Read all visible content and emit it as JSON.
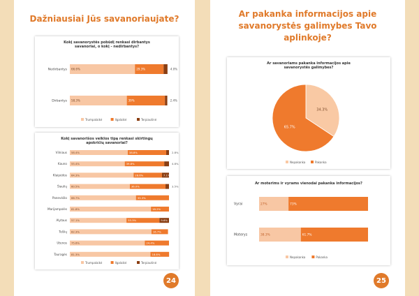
{
  "colors": {
    "light": "#f8c7a4",
    "mid": "#ef7a2d",
    "dark": "#8a3e12",
    "accent": "#e07a2a",
    "pie_light": "#f9c9a4",
    "pie_dark": "#ef7a2d"
  },
  "left_page": {
    "title": "Dažniausiai Jūs savanoriaujate?",
    "page_number": "24",
    "legend": [
      "Trumpalaikė",
      "Ilgalaikė",
      "Terpiautinė"
    ],
    "chart1": {
      "title": "Kokį savanorystės pobūdį renkasi dirbantys savanoriai, o kokį - nedirbantys?",
      "type": "bar",
      "categories": [
        "Nedirbantys",
        "Dirbantys"
      ],
      "series": [
        {
          "name": "Trumpalaikė",
          "values": [
            66.6,
            58.3
          ],
          "labels": [
            "66.6%",
            "58.3%"
          ]
        },
        {
          "name": "Ilgalaikė",
          "values": [
            29.3,
            39
          ],
          "labels": [
            "29.3%",
            "39%"
          ]
        },
        {
          "name": "Terpiautinė",
          "values": [
            4.0,
            2.4
          ],
          "labels": [
            "4.0%",
            "2.4%"
          ]
        }
      ]
    },
    "chart2": {
      "title": "Kokį savanorišos veiklos tipą renkasi skirtingų apskričių savanoriai?",
      "type": "bar",
      "categories": [
        "Vilniaus",
        "Kauno",
        "Klaipėdos",
        "Šiaulių",
        "Panevėžio",
        "Marijampolės",
        "Alytaus",
        "Telšių",
        "Utenos",
        "Tauragės"
      ],
      "series": [
        {
          "name": "Trumpalaikė",
          "values": [
            58.4,
            55.4,
            64.3,
            60.5,
            66.7,
            81.8,
            57.1,
            82.3,
            75.6,
            81.3
          ],
          "labels": [
            "58.4%",
            "55.4%",
            "64.3%",
            "60.5%",
            "66.7%",
            "81.8%",
            "57.1%",
            "82.3%",
            "75.6%",
            "81.3%"
          ]
        },
        {
          "name": "Ilgalaikė",
          "values": [
            38.8,
            39.8,
            28.6,
            36.0,
            33.3,
            18.2,
            33.3,
            16.7,
            24.4,
            18.8
          ],
          "labels": [
            "38.8%",
            "39.8%",
            "28.6%",
            "36.0%",
            "33.3%",
            "18.2%",
            "33.3%",
            "16.7%",
            "24.4%",
            "18.8%"
          ]
        },
        {
          "name": "Terpiautinė",
          "values": [
            2.8,
            4.8,
            7.1,
            3.5,
            0,
            0,
            9.6,
            0,
            0,
            0
          ],
          "labels": [
            "2.8%",
            "4.8%",
            "7.1%",
            "3.5%",
            "",
            "",
            "9.6%",
            "",
            "",
            ""
          ]
        }
      ]
    }
  },
  "right_page": {
    "title_lines": [
      "Ar pakanka informacijos apie",
      "savanorystės galimybes Tavo",
      "aplinkoje?"
    ],
    "page_number": "25",
    "legend": [
      "Nepakanka",
      "Pakanka"
    ],
    "chart3": {
      "title": "Ar savanoriams pakanka informacijos apie savanorystės galimybes?",
      "type": "pie",
      "slices": [
        {
          "name": "Nepakanka",
          "value": 34.3,
          "label": "34.3%"
        },
        {
          "name": "Pakanka",
          "value": 65.7,
          "label": "65.7%"
        }
      ]
    },
    "chart4": {
      "title": "Ar moterims ir vyrams vienodai pakanka informacijos?",
      "type": "bar",
      "categories": [
        "Vyrai",
        "Moterys"
      ],
      "series": [
        {
          "name": "Nepakanka",
          "values": [
            27,
            38.3
          ],
          "labels": [
            "27%",
            "38.3%"
          ]
        },
        {
          "name": "Pakanka",
          "values": [
            73,
            61.7
          ],
          "labels": [
            "73%",
            "61.7%"
          ]
        }
      ]
    }
  }
}
